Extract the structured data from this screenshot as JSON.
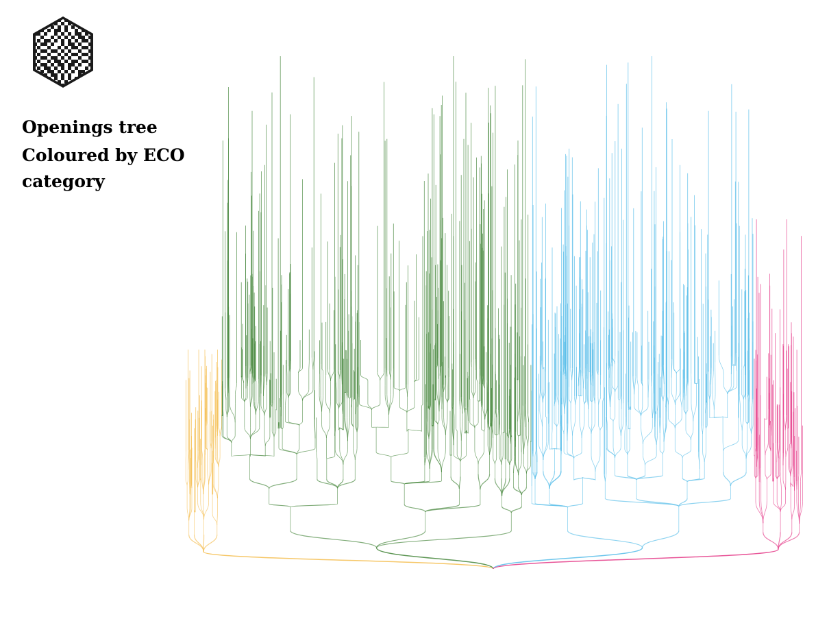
{
  "header": {
    "title": "Openings tree",
    "subtitle": "Coloured by ECO category"
  },
  "logo": {
    "icon": "checkered-hexagon-logo-icon",
    "color": "#1a1a1a"
  },
  "tree": {
    "type": "dendrogram",
    "categories": [
      {
        "id": "A",
        "color": "#f5c158",
        "relative_size": 0.06
      },
      {
        "id": "B",
        "color": "#4e8c44",
        "relative_size": 0.5
      },
      {
        "id": "C",
        "color": "#5ec0ea",
        "relative_size": 0.36
      },
      {
        "id": "D",
        "color": "#e6428d",
        "relative_size": 0.08
      }
    ]
  }
}
